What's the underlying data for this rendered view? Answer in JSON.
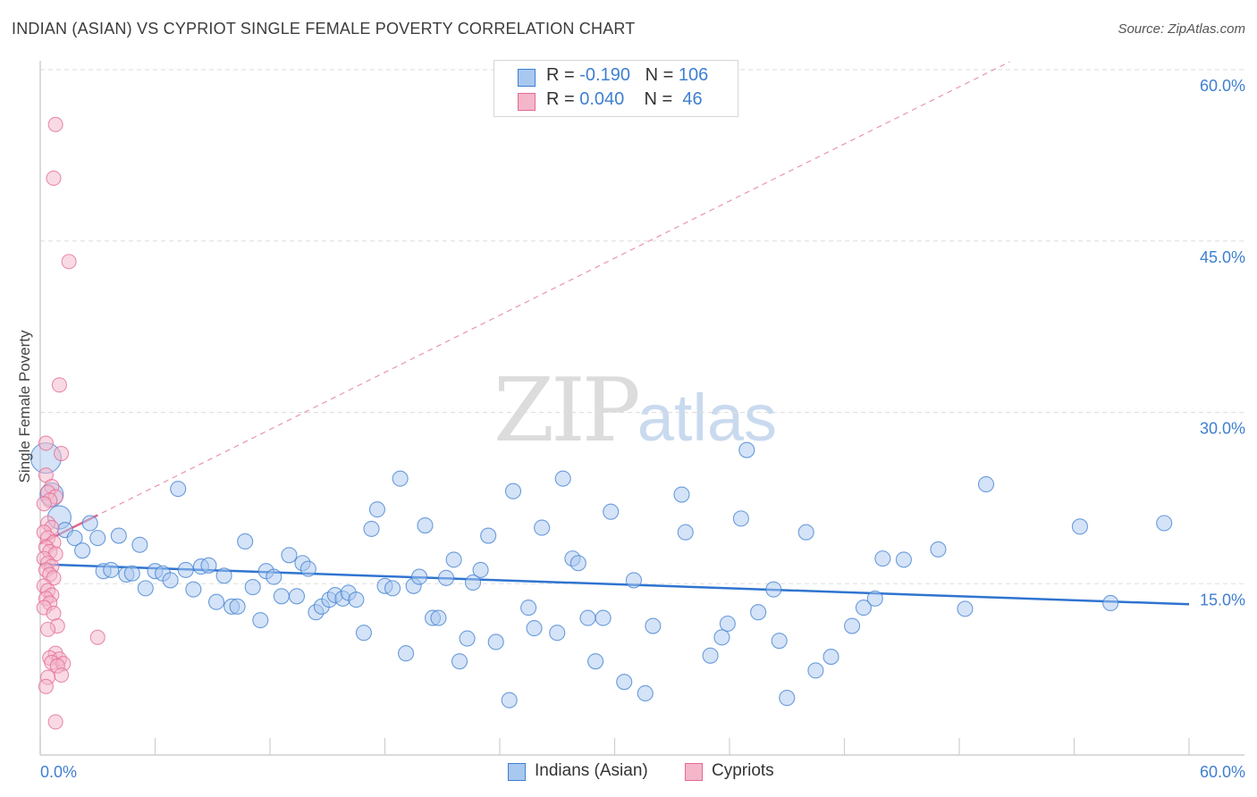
{
  "title": "INDIAN (ASIAN) VS CYPRIOT SINGLE FEMALE POVERTY CORRELATION CHART",
  "source": "Source: ZipAtlas.com",
  "colors": {
    "blue": "#3f7fd0",
    "blue_fill": "#a9c8ef",
    "blue_line": "#2f74d0",
    "pink": "#e46a93",
    "pink_fill": "#f4b6c9",
    "pink_line": "#e0688f",
    "grid": "#dddddd"
  },
  "legend": {
    "row1": {
      "r_label": "R = ",
      "r_value": "-0.190",
      "n_label": "N = ",
      "n_value": "106"
    },
    "row2": {
      "r_label": "R = ",
      "r_value": "0.040",
      "n_label": "N = ",
      "n_value": " 46"
    }
  },
  "bottom_legend": {
    "series1": "Indians (Asian)",
    "series2": "Cypriots"
  },
  "watermark": {
    "zip": "ZIP",
    "atlas": "atlas"
  },
  "chart_data": {
    "type": "scatter",
    "ylabel": "Single Female Poverty",
    "xlim": [
      0,
      60
    ],
    "ylim": [
      0,
      60
    ],
    "y_ticks": [
      "15.0%",
      "30.0%",
      "45.0%",
      "60.0%"
    ],
    "x_ticks": [
      "0.0%",
      "60.0%"
    ],
    "series": [
      {
        "name": "Indians (Asian)",
        "color": "#3f7fd0",
        "trend": {
          "x": [
            0,
            60
          ],
          "y": [
            16.7,
            13.2
          ]
        },
        "points": [
          [
            0.3,
            26.0
          ],
          [
            0.6,
            22.8
          ],
          [
            1.0,
            20.8
          ],
          [
            1.3,
            19.7
          ],
          [
            1.8,
            19.0
          ],
          [
            2.2,
            17.9
          ],
          [
            2.6,
            20.3
          ],
          [
            3.0,
            19.0
          ],
          [
            3.3,
            16.1
          ],
          [
            3.7,
            16.2
          ],
          [
            4.1,
            19.2
          ],
          [
            4.5,
            15.8
          ],
          [
            4.8,
            15.9
          ],
          [
            5.2,
            18.4
          ],
          [
            5.5,
            14.6
          ],
          [
            6.0,
            16.1
          ],
          [
            6.4,
            15.9
          ],
          [
            6.8,
            15.3
          ],
          [
            7.2,
            23.3
          ],
          [
            7.6,
            16.2
          ],
          [
            8.0,
            14.5
          ],
          [
            8.4,
            16.5
          ],
          [
            8.8,
            16.6
          ],
          [
            9.2,
            13.4
          ],
          [
            9.6,
            15.7
          ],
          [
            10.0,
            13.0
          ],
          [
            10.3,
            13.0
          ],
          [
            10.7,
            18.7
          ],
          [
            11.1,
            14.7
          ],
          [
            11.5,
            11.8
          ],
          [
            11.8,
            16.1
          ],
          [
            12.2,
            15.6
          ],
          [
            12.6,
            13.9
          ],
          [
            13.0,
            17.5
          ],
          [
            13.4,
            13.9
          ],
          [
            13.7,
            16.8
          ],
          [
            14.0,
            16.3
          ],
          [
            14.4,
            12.5
          ],
          [
            14.7,
            13.0
          ],
          [
            15.1,
            13.6
          ],
          [
            15.4,
            14.0
          ],
          [
            15.8,
            13.7
          ],
          [
            16.1,
            14.2
          ],
          [
            16.5,
            13.6
          ],
          [
            16.9,
            10.7
          ],
          [
            17.3,
            19.8
          ],
          [
            17.6,
            21.5
          ],
          [
            18.0,
            14.8
          ],
          [
            18.4,
            14.6
          ],
          [
            18.8,
            24.2
          ],
          [
            19.1,
            8.9
          ],
          [
            19.5,
            14.8
          ],
          [
            19.8,
            15.6
          ],
          [
            20.1,
            20.1
          ],
          [
            20.5,
            12.0
          ],
          [
            20.8,
            12.0
          ],
          [
            21.2,
            15.5
          ],
          [
            21.6,
            17.1
          ],
          [
            21.9,
            8.2
          ],
          [
            22.3,
            10.2
          ],
          [
            22.6,
            15.1
          ],
          [
            23.0,
            16.2
          ],
          [
            23.4,
            19.2
          ],
          [
            23.8,
            9.9
          ],
          [
            24.5,
            4.8
          ],
          [
            24.7,
            23.1
          ],
          [
            25.5,
            12.9
          ],
          [
            25.8,
            11.1
          ],
          [
            26.2,
            19.9
          ],
          [
            27.0,
            10.7
          ],
          [
            27.3,
            24.2
          ],
          [
            27.8,
            17.2
          ],
          [
            28.1,
            16.8
          ],
          [
            28.6,
            12.0
          ],
          [
            29.0,
            8.2
          ],
          [
            29.4,
            12.0
          ],
          [
            29.8,
            21.3
          ],
          [
            30.5,
            6.4
          ],
          [
            31.0,
            15.3
          ],
          [
            31.6,
            5.4
          ],
          [
            32.0,
            11.3
          ],
          [
            33.5,
            22.8
          ],
          [
            33.7,
            19.5
          ],
          [
            35.0,
            8.7
          ],
          [
            35.6,
            10.3
          ],
          [
            35.9,
            11.5
          ],
          [
            36.6,
            20.7
          ],
          [
            36.9,
            26.7
          ],
          [
            37.5,
            12.5
          ],
          [
            38.3,
            14.5
          ],
          [
            38.6,
            10.0
          ],
          [
            39.0,
            5.0
          ],
          [
            40.0,
            19.5
          ],
          [
            40.5,
            7.4
          ],
          [
            41.3,
            8.6
          ],
          [
            42.4,
            11.3
          ],
          [
            43.0,
            12.9
          ],
          [
            43.6,
            13.7
          ],
          [
            44.0,
            17.2
          ],
          [
            45.1,
            17.1
          ],
          [
            46.9,
            18.0
          ],
          [
            48.3,
            12.8
          ],
          [
            49.4,
            23.7
          ],
          [
            54.3,
            20.0
          ],
          [
            55.9,
            13.3
          ],
          [
            58.7,
            20.3
          ]
        ]
      },
      {
        "name": "Cypriots",
        "color": "#e46a93",
        "trend": {
          "x": [
            0,
            3
          ],
          "y": [
            18.5,
            21.0
          ]
        },
        "trend_extended": {
          "x": [
            0,
            60
          ],
          "y": [
            18.5,
            68.5
          ]
        },
        "points": [
          [
            0.8,
            55.2
          ],
          [
            0.7,
            50.5
          ],
          [
            1.5,
            43.2
          ],
          [
            1.0,
            32.4
          ],
          [
            1.1,
            26.4
          ],
          [
            0.3,
            27.3
          ],
          [
            0.3,
            24.5
          ],
          [
            0.6,
            23.5
          ],
          [
            0.4,
            23.0
          ],
          [
            0.8,
            22.6
          ],
          [
            0.5,
            22.3
          ],
          [
            0.2,
            22.0
          ],
          [
            0.4,
            20.3
          ],
          [
            0.6,
            19.9
          ],
          [
            0.2,
            19.5
          ],
          [
            0.4,
            19.0
          ],
          [
            0.7,
            18.6
          ],
          [
            0.3,
            18.2
          ],
          [
            0.5,
            17.8
          ],
          [
            0.8,
            17.6
          ],
          [
            0.2,
            17.2
          ],
          [
            0.4,
            16.8
          ],
          [
            0.6,
            16.5
          ],
          [
            0.3,
            16.2
          ],
          [
            0.5,
            15.8
          ],
          [
            0.7,
            15.5
          ],
          [
            0.2,
            14.8
          ],
          [
            0.4,
            14.4
          ],
          [
            0.6,
            14.0
          ],
          [
            0.3,
            13.7
          ],
          [
            0.5,
            13.3
          ],
          [
            0.2,
            12.9
          ],
          [
            0.7,
            12.4
          ],
          [
            0.9,
            11.3
          ],
          [
            0.4,
            11.0
          ],
          [
            3.0,
            10.3
          ],
          [
            0.8,
            8.9
          ],
          [
            0.5,
            8.5
          ],
          [
            1.0,
            8.4
          ],
          [
            0.6,
            8.1
          ],
          [
            1.2,
            8.0
          ],
          [
            0.9,
            7.8
          ],
          [
            1.1,
            7.0
          ],
          [
            0.4,
            6.8
          ],
          [
            0.3,
            6.0
          ],
          [
            0.8,
            2.9
          ]
        ]
      }
    ]
  }
}
